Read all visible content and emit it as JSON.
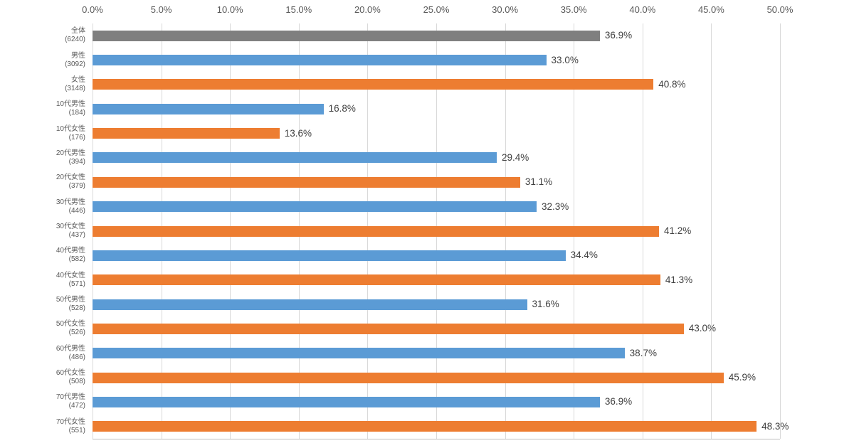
{
  "chart_data": {
    "type": "bar",
    "orientation": "horizontal",
    "title": "",
    "xlabel": "",
    "ylabel": "",
    "xlim": [
      0,
      50
    ],
    "grid": true,
    "legend": "none",
    "x_ticks": [
      "0.0%",
      "5.0%",
      "10.0%",
      "15.0%",
      "20.0%",
      "25.0%",
      "30.0%",
      "35.0%",
      "40.0%",
      "45.0%",
      "50.0%"
    ],
    "x_tick_values": [
      0,
      5,
      10,
      15,
      20,
      25,
      30,
      35,
      40,
      45,
      50
    ],
    "palette": {
      "total": "#7F7F7F",
      "male": "#5B9BD5",
      "female": "#ED7D31"
    },
    "points": [
      {
        "category": "全体",
        "count": "(6240)",
        "value": 36.9,
        "label": "36.9%",
        "series": "total"
      },
      {
        "category": "男性",
        "count": "(3092)",
        "value": 33.0,
        "label": "33.0%",
        "series": "male"
      },
      {
        "category": "女性",
        "count": "(3148)",
        "value": 40.8,
        "label": "40.8%",
        "series": "female"
      },
      {
        "category": "10代男性",
        "count": "(184)",
        "value": 16.8,
        "label": "16.8%",
        "series": "male"
      },
      {
        "category": "10代女性",
        "count": "(176)",
        "value": 13.6,
        "label": "13.6%",
        "series": "female"
      },
      {
        "category": "20代男性",
        "count": "(394)",
        "value": 29.4,
        "label": "29.4%",
        "series": "male"
      },
      {
        "category": "20代女性",
        "count": "(379)",
        "value": 31.1,
        "label": "31.1%",
        "series": "female"
      },
      {
        "category": "30代男性",
        "count": "(446)",
        "value": 32.3,
        "label": "32.3%",
        "series": "male"
      },
      {
        "category": "30代女性",
        "count": "(437)",
        "value": 41.2,
        "label": "41.2%",
        "series": "female"
      },
      {
        "category": "40代男性",
        "count": "(582)",
        "value": 34.4,
        "label": "34.4%",
        "series": "male"
      },
      {
        "category": "40代女性",
        "count": "(571)",
        "value": 41.3,
        "label": "41.3%",
        "series": "female"
      },
      {
        "category": "50代男性",
        "count": "(528)",
        "value": 31.6,
        "label": "31.6%",
        "series": "male"
      },
      {
        "category": "50代女性",
        "count": "(526)",
        "value": 43.0,
        "label": "43.0%",
        "series": "female"
      },
      {
        "category": "60代男性",
        "count": "(486)",
        "value": 38.7,
        "label": "38.7%",
        "series": "male"
      },
      {
        "category": "60代女性",
        "count": "(508)",
        "value": 45.9,
        "label": "45.9%",
        "series": "female"
      },
      {
        "category": "70代男性",
        "count": "(472)",
        "value": 36.9,
        "label": "36.9%",
        "series": "male"
      },
      {
        "category": "70代女性",
        "count": "(551)",
        "value": 48.3,
        "label": "48.3%",
        "series": "female"
      }
    ]
  },
  "colors": {
    "background": "#FFFFFF",
    "gridline": "#D9D9D9",
    "axis_line": "#BFBFBF",
    "tick_text": "#595959",
    "category_text": "#595959",
    "value_text": "#404040"
  }
}
